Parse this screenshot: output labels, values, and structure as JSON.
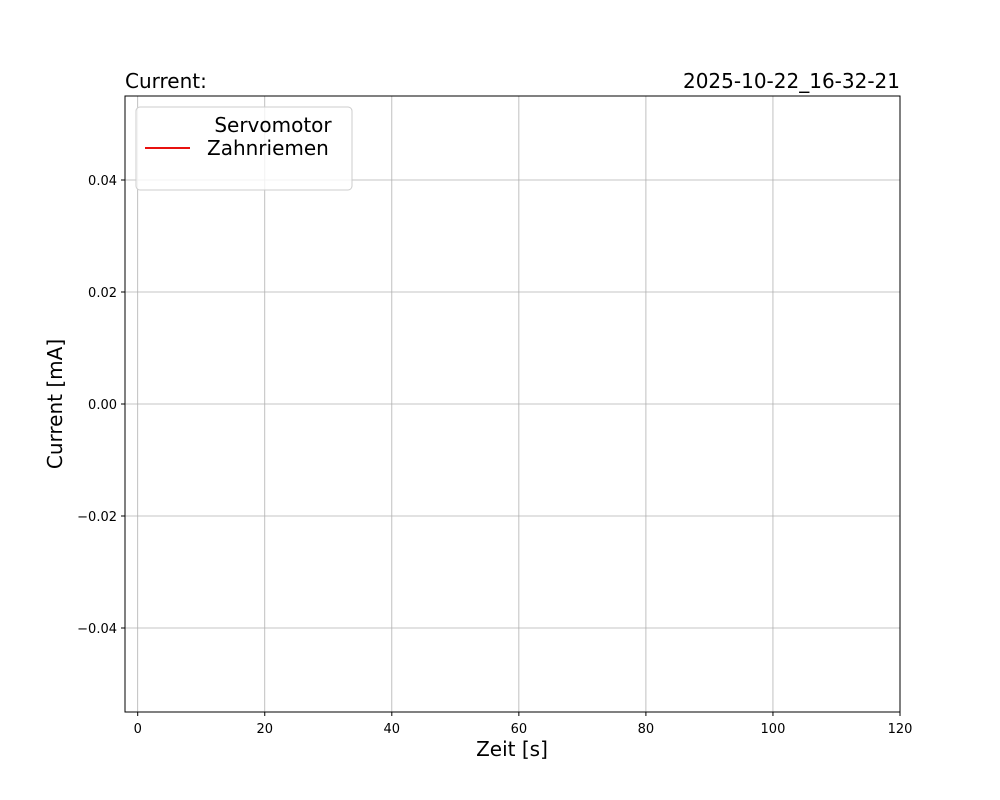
{
  "chart_data": {
    "type": "line",
    "title_left": "Current:",
    "title_right": "2025-10-22_16-32-21",
    "xlabel": "Zeit [s]",
    "ylabel": "Current [mA]",
    "xlim": [
      -2,
      120
    ],
    "ylim": [
      -0.055,
      0.055
    ],
    "xticks": [
      0,
      20,
      40,
      60,
      80,
      100,
      120
    ],
    "yticks": [
      -0.04,
      -0.02,
      0.0,
      0.02,
      0.04
    ],
    "ytick_labels": [
      "−0.04",
      "−0.02",
      "0.00",
      "0.02",
      "0.04"
    ],
    "grid": true,
    "legend": {
      "placement": "upper-left",
      "title": "Servomotor",
      "entries": [
        {
          "name": "Zahnriemen",
          "color": "#e8110f"
        }
      ]
    },
    "series": [
      {
        "name": "Zahnriemen",
        "color": "#e8110f",
        "x": [],
        "y": []
      }
    ]
  }
}
